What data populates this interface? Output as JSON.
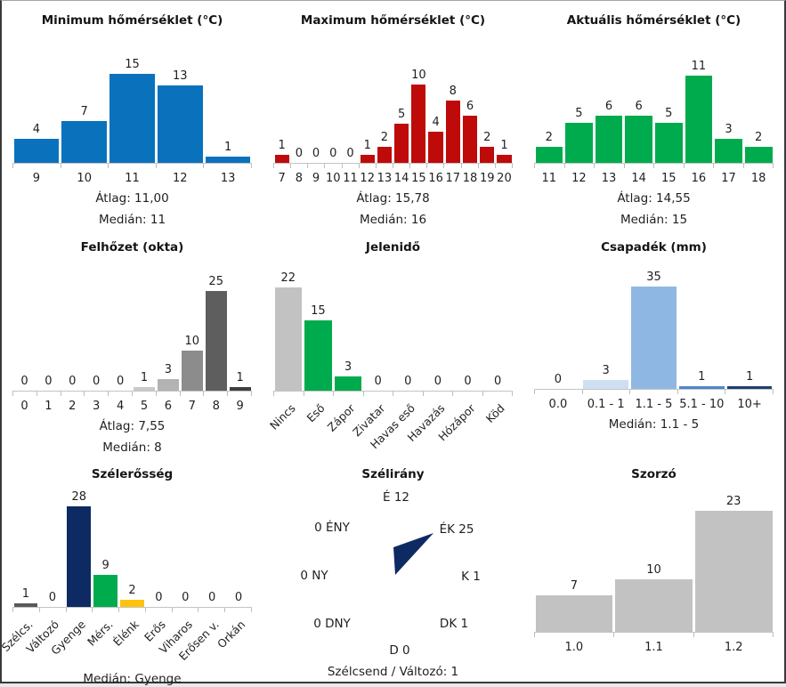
{
  "colors": {
    "blue": "#0a72bd",
    "red": "#bf0a0a",
    "green": "#00ab4e",
    "navy": "#0d2a63",
    "yellow": "#ffc20e",
    "gray": "#c2c2c2",
    "dark_gray": "#595959",
    "axis": "#c4c4c4"
  },
  "chart_data": [
    {
      "type": "bar",
      "title": "Minimum hőmérséklet (°C)",
      "categories": [
        "9",
        "10",
        "11",
        "12",
        "13"
      ],
      "values": [
        4,
        7,
        15,
        13,
        1
      ],
      "color": "#0a72bd",
      "stats": [
        "Átlag: 11,00",
        "Medián: 11"
      ]
    },
    {
      "type": "bar",
      "title": "Maximum hőmérséklet (°C)",
      "categories": [
        "7",
        "8",
        "9",
        "10",
        "11",
        "12",
        "13",
        "14",
        "15",
        "16",
        "17",
        "18",
        "19",
        "20"
      ],
      "values": [
        1,
        0,
        0,
        0,
        0,
        1,
        2,
        5,
        10,
        4,
        8,
        6,
        2,
        1
      ],
      "color": "#bf0a0a",
      "stats": [
        "Átlag: 15,78",
        "Medián: 16"
      ]
    },
    {
      "type": "bar",
      "title": "Aktuális hőmérséklet (°C)",
      "categories": [
        "11",
        "12",
        "13",
        "14",
        "15",
        "16",
        "17",
        "18"
      ],
      "values": [
        2,
        5,
        6,
        6,
        5,
        11,
        3,
        2
      ],
      "color": "#00ab4e",
      "stats": [
        "Átlag: 14,55",
        "Medián: 15"
      ]
    },
    {
      "type": "bar",
      "title": "Felhőzet (okta)",
      "categories": [
        "0",
        "1",
        "2",
        "3",
        "4",
        "5",
        "6",
        "7",
        "8",
        "9"
      ],
      "values": [
        0,
        0,
        0,
        0,
        0,
        1,
        3,
        10,
        25,
        1
      ],
      "bar_colors": [
        "",
        "",
        "",
        "",
        "",
        "#c9c9c9",
        "#b3b3b3",
        "#8c8c8c",
        "#5e5e5e",
        "#3f3f3f"
      ],
      "stats": [
        "Átlag: 7,55",
        "Medián: 8"
      ]
    },
    {
      "type": "bar",
      "title": "Jelenidő",
      "categories": [
        "Nincs",
        "Eső",
        "Zápor",
        "Zivatar",
        "Havas eső",
        "Havazás",
        "Hózápor",
        "Köd"
      ],
      "values": [
        22,
        15,
        3,
        0,
        0,
        0,
        0,
        0
      ],
      "bar_colors": [
        "#c2c2c2",
        "#00ab4e",
        "#00ab4e",
        "",
        "",
        "",
        "",
        ""
      ],
      "stats": []
    },
    {
      "type": "bar",
      "title": "Csapadék (mm)",
      "categories": [
        "0.0",
        "0.1 - 1",
        "1.1 - 5",
        "5.1 - 10",
        "10+"
      ],
      "values": [
        0,
        3,
        35,
        1,
        1
      ],
      "bar_colors": [
        "",
        "#cfdff2",
        "#8fb7e3",
        "#4d88c9",
        "#1e3f6e"
      ],
      "stats": [
        "Medián: 1.1 - 5"
      ]
    },
    {
      "type": "bar",
      "title": "Szélerősség",
      "categories": [
        "Szélcs.",
        "Változó",
        "Gyenge",
        "Mérs.",
        "Élénk",
        "Erős",
        "Viharos",
        "Erősen v.",
        "Orkán"
      ],
      "values": [
        1,
        0,
        28,
        9,
        2,
        0,
        0,
        0,
        0
      ],
      "bar_colors": [
        "#595959",
        "",
        "#0d2a63",
        "#00ab4e",
        "#ffc20e",
        "",
        "",
        "",
        ""
      ],
      "stats": [
        "Medián: Gyenge"
      ]
    },
    {
      "type": "compass",
      "title": "Szélirány",
      "items": [
        {
          "pos": "n",
          "direction": "É",
          "count": 12,
          "text": "É 12"
        },
        {
          "pos": "ne",
          "direction": "ÉK",
          "count": 25,
          "text": "ÉK 25"
        },
        {
          "pos": "e",
          "direction": "K",
          "count": 1,
          "text": "K 1"
        },
        {
          "pos": "se",
          "direction": "DK",
          "count": 1,
          "text": "DK 1"
        },
        {
          "pos": "s",
          "direction": "D",
          "count": 0,
          "text": "D 0"
        },
        {
          "pos": "sw",
          "direction": "DNY",
          "count": 0,
          "text": "0 DNY"
        },
        {
          "pos": "w",
          "direction": "NY",
          "count": 0,
          "text": "0 NY"
        },
        {
          "pos": "nw",
          "direction": "ÉNY",
          "count": 0,
          "text": "0 ÉNY"
        }
      ],
      "arrow": {
        "points_to": "ÉK",
        "color": "#0d2a63"
      },
      "footer": "Szélcsend / Változó: 1"
    },
    {
      "type": "bar",
      "title": "Szorzó",
      "categories": [
        "1.0",
        "1.1",
        "1.2"
      ],
      "values": [
        7,
        10,
        23
      ],
      "color": "#c2c2c2",
      "stats": []
    }
  ]
}
